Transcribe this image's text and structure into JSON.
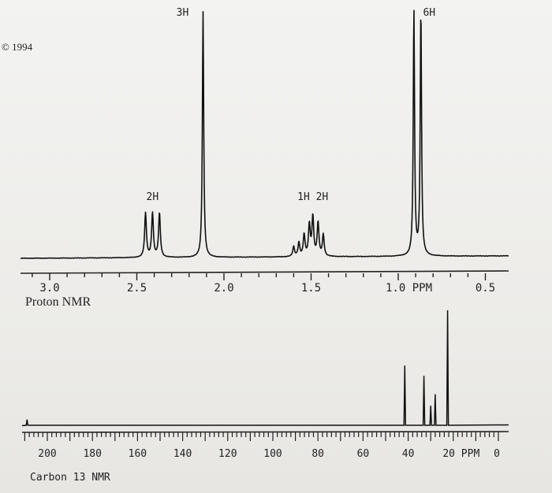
{
  "copyright": "© 1994",
  "chart_data": [
    {
      "type": "line",
      "title": "",
      "caption": "Proton NMR",
      "x_unit": "PPM",
      "xlim": [
        3.1,
        0.4
      ],
      "x_reversed": true,
      "tick_labels": [
        "3.0",
        "2.5",
        "2.0",
        "1.5",
        "1.0 PPM",
        "0.5"
      ],
      "tick_values": [
        3.0,
        2.5,
        2.0,
        1.5,
        1.0,
        0.5
      ],
      "peaks": [
        {
          "label": "2H",
          "shift": 2.41,
          "multiplet": [
            2.45,
            2.41,
            2.37
          ],
          "relative_height": 0.18
        },
        {
          "label": "3H",
          "shift": 2.12,
          "relative_height": 1.0
        },
        {
          "label": "1H 2H",
          "shift": 1.49,
          "multiplet": [
            1.6,
            1.57,
            1.54,
            1.51,
            1.49,
            1.46,
            1.43
          ],
          "relative_height": 0.16
        },
        {
          "label": "6H",
          "shift": 0.89,
          "multiplet": [
            0.91,
            0.87
          ],
          "relative_height": 1.0
        }
      ]
    },
    {
      "type": "line",
      "title": "",
      "caption": "Carbon 13 NMR",
      "x_unit": "PPM",
      "xlim": [
        210,
        0
      ],
      "x_reversed": true,
      "tick_labels": [
        "200",
        "180",
        "160",
        "140",
        "120",
        "100",
        "80",
        "60",
        "40",
        "20 PPM",
        "0"
      ],
      "tick_values": [
        200,
        180,
        160,
        140,
        120,
        100,
        80,
        60,
        40,
        20,
        0
      ],
      "peaks": [
        {
          "shift": 209.0,
          "relative_height": 0.05
        },
        {
          "shift": 41.5,
          "relative_height": 0.52
        },
        {
          "shift": 33.0,
          "relative_height": 0.43
        },
        {
          "shift": 30.0,
          "relative_height": 0.17
        },
        {
          "shift": 28.0,
          "relative_height": 0.27
        },
        {
          "shift": 22.5,
          "relative_height": 1.0
        }
      ]
    }
  ]
}
